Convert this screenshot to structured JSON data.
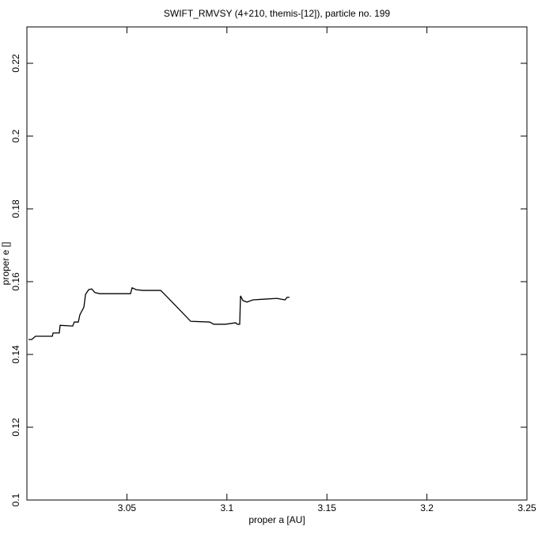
{
  "chart_data": {
    "type": "line",
    "title": "SWIFT_RMVSY (4+210, themis-[12]), particle no. 199",
    "x_label": "proper a [AU]",
    "y_label": "proper e []",
    "color": "#000000",
    "x": [
      3.0008,
      3.0024,
      3.0043,
      3.0127,
      3.0131,
      3.0162,
      3.0166,
      3.0229,
      3.0237,
      3.0257,
      3.0265,
      3.0285,
      3.0293,
      3.0309,
      3.0324,
      3.034,
      3.0364,
      3.04,
      3.0439,
      3.0518,
      3.0526,
      3.0546,
      3.0578,
      3.0669,
      3.068,
      3.0712,
      3.0819,
      3.0914,
      3.0934,
      3.0993,
      3.1044,
      3.1052,
      3.1064,
      3.1068,
      3.108,
      3.11,
      3.1131,
      3.1191,
      3.125,
      3.129,
      3.1301,
      3.1313
    ],
    "values": [
      0.1441,
      0.1441,
      0.145,
      0.145,
      0.1459,
      0.1459,
      0.148,
      0.1478,
      0.1489,
      0.1489,
      0.1509,
      0.153,
      0.1565,
      0.1578,
      0.158,
      0.157,
      0.1567,
      0.1567,
      0.1567,
      0.1567,
      0.1583,
      0.1578,
      0.1576,
      0.1576,
      0.157,
      0.1552,
      0.1491,
      0.1489,
      0.1483,
      0.1483,
      0.1487,
      0.1483,
      0.1483,
      0.1561,
      0.1548,
      0.1544,
      0.155,
      0.1552,
      0.1554,
      0.155,
      0.1557,
      0.1557
    ],
    "xlim": [
      3.0,
      3.25
    ],
    "ylim": [
      0.1,
      0.23
    ],
    "xticks": [
      3.05,
      3.1,
      3.15,
      3.2,
      3.25
    ],
    "yticks": [
      0.1,
      0.12,
      0.14,
      0.16,
      0.18,
      0.2,
      0.22
    ]
  }
}
